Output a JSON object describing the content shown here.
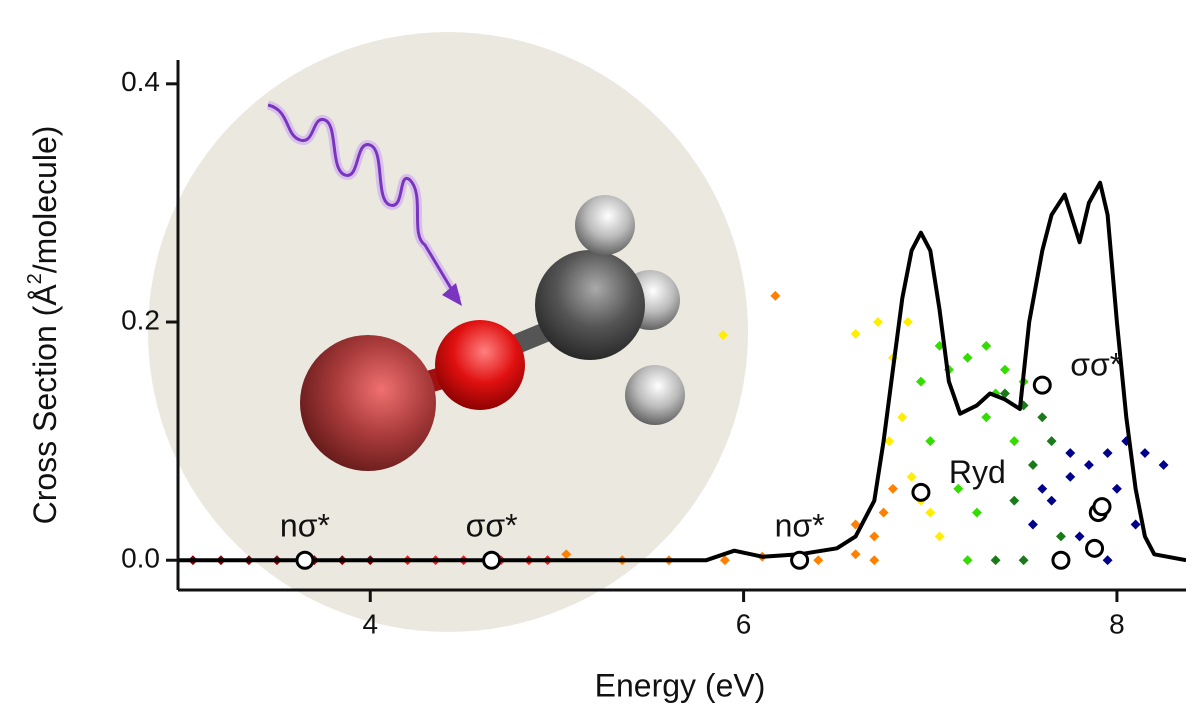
{
  "chart_data": {
    "type": "line",
    "x_label": "Energy (eV)",
    "y_label": [
      "Cross Section (Å",
      "2",
      "/molecule)"
    ],
    "xlim": [
      2.97,
      8.37
    ],
    "ylim": [
      -0.025,
      0.42
    ],
    "xticks": [
      4,
      6,
      8
    ],
    "yticks": [
      {
        "value": 0,
        "label": "0.0"
      },
      {
        "value": 0.2,
        "label": "0.2"
      },
      {
        "value": 0.4,
        "label": "0.4"
      }
    ],
    "series": [
      {
        "type": "scatter",
        "color": "#8b0000",
        "x": [
          3.05,
          3.2,
          3.35,
          3.5,
          3.7,
          3.85,
          4.0
        ],
        "values": [
          0,
          0,
          0,
          0,
          0,
          0,
          0
        ]
      },
      {
        "type": "scatter",
        "color": "#ff1a1a",
        "x": [
          4.2,
          4.35,
          4.5,
          4.7,
          4.85,
          4.95
        ],
        "values": [
          0,
          0,
          0,
          0,
          0,
          0
        ]
      },
      {
        "type": "scatter",
        "color": "#ff8000",
        "x": [
          5.05,
          5.35,
          5.6,
          5.9,
          6.1,
          6.4,
          6.6,
          6.7,
          6.75,
          6.8,
          6.6,
          6.7,
          6.17
        ],
        "values": [
          0.005,
          0,
          0,
          0,
          0.003,
          0,
          0.005,
          0.02,
          0.04,
          0.06,
          0.03,
          0,
          0.222
        ]
      },
      {
        "type": "scatter",
        "color": "#ffee00",
        "x": [
          6.6,
          6.72,
          6.8,
          6.85,
          6.9,
          6.95,
          7.0,
          7.05,
          6.78,
          6.88,
          6.95,
          5.89
        ],
        "values": [
          0.19,
          0.2,
          0.17,
          0.12,
          0.07,
          0.05,
          0.04,
          0.02,
          0.1,
          0.2,
          0.06,
          0.189
        ]
      },
      {
        "type": "scatter",
        "color": "#33dd00",
        "x": [
          6.95,
          7.05,
          7.1,
          7.2,
          7.3,
          7.4,
          7.5,
          7.35,
          7.15,
          7.25,
          7.45,
          7.0,
          7.2,
          7.3
        ],
        "values": [
          0.15,
          0.18,
          0.16,
          0.17,
          0.18,
          0.16,
          0.15,
          0.14,
          0.06,
          0.04,
          0.1,
          0.1,
          0,
          0.12
        ]
      },
      {
        "type": "scatter",
        "color": "#1a7a1a",
        "x": [
          7.4,
          7.5,
          7.6,
          7.65,
          7.55,
          7.45,
          7.7,
          7.35,
          7.5
        ],
        "values": [
          0.14,
          0.13,
          0.12,
          0.1,
          0.08,
          0.05,
          0.02,
          0,
          0
        ]
      },
      {
        "type": "scatter",
        "color": "#00008b",
        "x": [
          7.55,
          7.65,
          7.75,
          7.85,
          7.95,
          8.05,
          8.15,
          8.25,
          7.7,
          7.8,
          7.9,
          8.0,
          8.1,
          7.6,
          7.75,
          7.95
        ],
        "values": [
          0.03,
          0.05,
          0.07,
          0.08,
          0.09,
          0.1,
          0.09,
          0.08,
          0,
          0.02,
          0.04,
          0.06,
          0.03,
          0.06,
          0.09,
          0
        ]
      },
      {
        "type": "line",
        "color": "#000000",
        "x": [
          2.97,
          5.8,
          5.95,
          6.1,
          6.3,
          6.5,
          6.6,
          6.7,
          6.75,
          6.8,
          6.85,
          6.9,
          6.95,
          7.0,
          7.05,
          7.1,
          7.16,
          7.25,
          7.32,
          7.4,
          7.48,
          7.53,
          7.6,
          7.65,
          7.72,
          7.8,
          7.85,
          7.91,
          7.95,
          8.0,
          8.05,
          8.1,
          8.15,
          8.2,
          8.37
        ],
        "values": [
          0,
          0,
          0.008,
          0.003,
          0.005,
          0.01,
          0.02,
          0.05,
          0.1,
          0.16,
          0.22,
          0.26,
          0.275,
          0.26,
          0.21,
          0.15,
          0.123,
          0.13,
          0.14,
          0.135,
          0.127,
          0.2,
          0.26,
          0.29,
          0.307,
          0.267,
          0.3,
          0.317,
          0.29,
          0.2,
          0.12,
          0.06,
          0.02,
          0.005,
          0
        ]
      },
      {
        "type": "marker",
        "color": "#ffffff",
        "x": [
          3.65,
          4.65,
          6.3,
          6.95,
          7.6,
          7.7,
          7.88,
          7.9,
          7.92
        ],
        "values": [
          0,
          0,
          0,
          0.057,
          0.147,
          0,
          0.01,
          0.04,
          0.045
        ],
        "labels": [
          "nσ*",
          "σσ*",
          "nσ*",
          "Ryd",
          "σσ*",
          null,
          null,
          null,
          null
        ]
      }
    ]
  }
}
